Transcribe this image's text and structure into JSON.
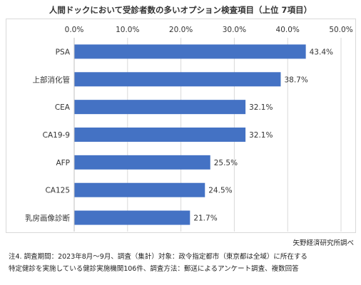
{
  "title": "人間ドックにおいて受診者数の多いオプション検査項目（上位 7項目）",
  "source": "矢野経済研究所調べ",
  "notes": [
    "注4.  調査期間：2023年8月～9月、調査（集計）対象：政令指定都市（東京都は全域）に所在する",
    "特定健診を実施している健診実施機関106件、調査方法：郵送によるアンケート調査、複数回答"
  ],
  "colors": {
    "bar": "#4472c4",
    "grid": "#d9d9d9",
    "text": "#333333"
  },
  "chart_data": {
    "type": "bar",
    "orientation": "horizontal",
    "categories": [
      "PSA",
      "上部消化管",
      "CEA",
      "CA19-9",
      "AFP",
      "CA125",
      "乳房画像診断"
    ],
    "values": [
      43.4,
      38.7,
      32.1,
      32.1,
      25.5,
      24.5,
      21.7
    ],
    "value_labels": [
      "43.4%",
      "38.7%",
      "32.1%",
      "32.1%",
      "25.5%",
      "24.5%",
      "21.7%"
    ],
    "xticks": [
      0,
      10,
      20,
      30,
      40,
      50
    ],
    "xtick_labels": [
      "0.0%",
      "10.0%",
      "20.0%",
      "30.0%",
      "40.0%",
      "50.0%"
    ],
    "xlim": [
      0,
      50
    ],
    "xaxis_position": "top",
    "grid": true,
    "legend": false
  }
}
